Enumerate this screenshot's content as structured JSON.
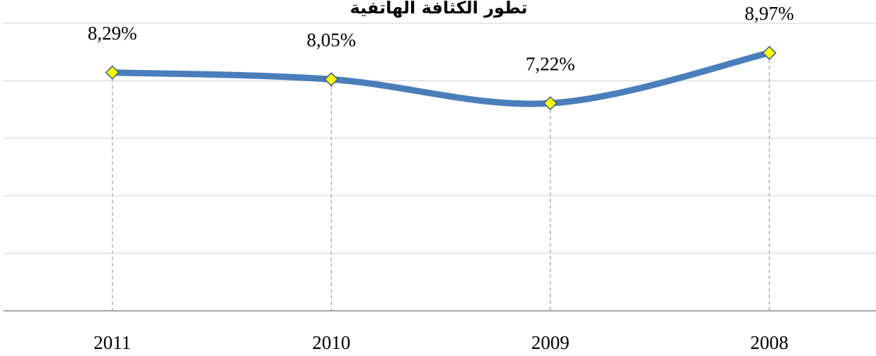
{
  "chart_data": {
    "type": "line",
    "title": "تطور الكثافة الهاتفية",
    "categories": [
      "2011",
      "2010",
      "2009",
      "2008"
    ],
    "values": [
      8.29,
      8.05,
      7.22,
      8.97
    ],
    "value_labels": [
      "8,29%",
      "8,05%",
      "7,22%",
      "8,97%"
    ],
    "color": "#4a7ebb",
    "marker_color": "#ffff00",
    "ylim": [
      0,
      10
    ],
    "yticks": [
      0,
      2,
      4,
      6,
      8,
      10
    ],
    "grid": true
  }
}
